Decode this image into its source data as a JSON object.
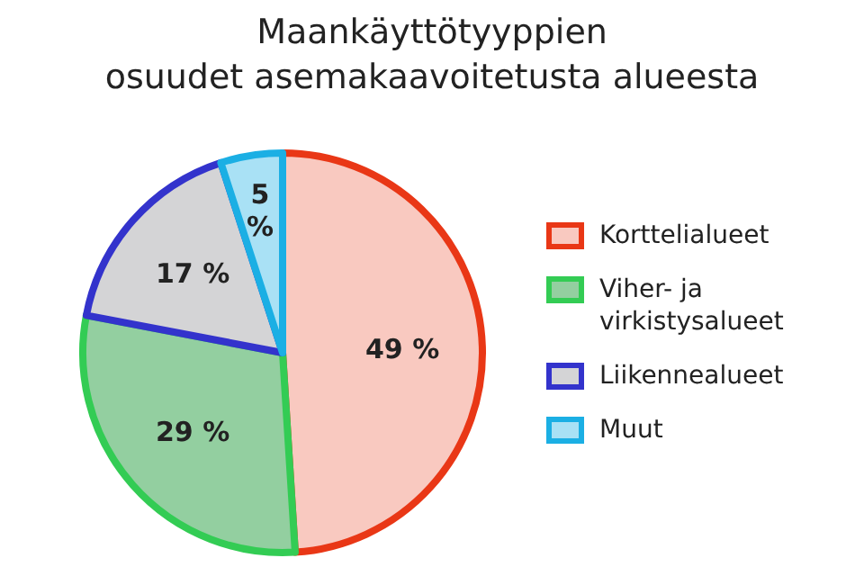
{
  "chart_data": {
    "type": "pie",
    "title": "Maankäyttötyyppien\nosuudet asemakaavoitetusta alueesta",
    "categories": [
      "Korttelialueet",
      "Viher- ja\nvirkistysalueet",
      "Liikennealueet",
      "Muut"
    ],
    "values": [
      49,
      29,
      17,
      5
    ],
    "colors": [
      "#f9c9c0",
      "#93cfa0",
      "#d4d4d6",
      "#a9e1f5"
    ],
    "value_labels": [
      "49 %",
      "29 %",
      "17 %",
      "5 %"
    ],
    "legend": "right"
  }
}
